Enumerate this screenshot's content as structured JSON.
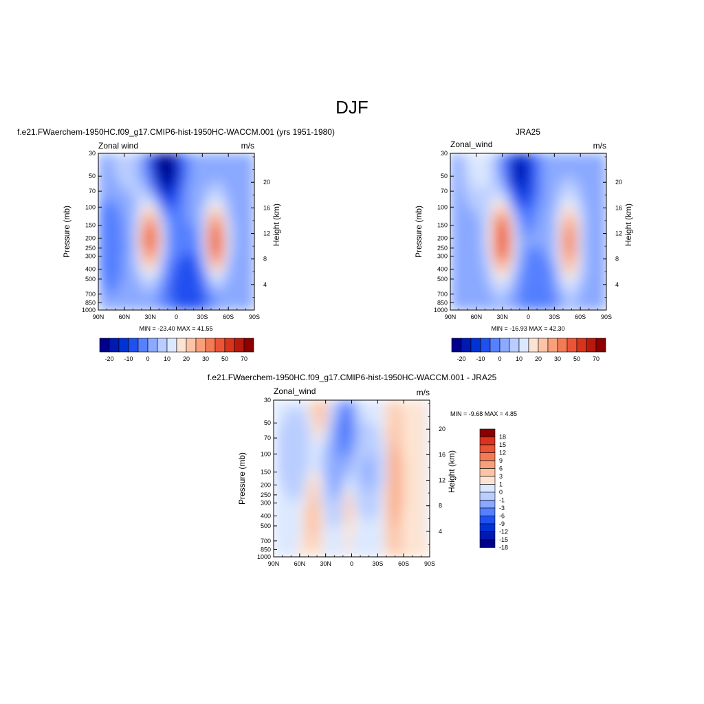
{
  "title": "DJF",
  "palette_main": [
    "#00008b",
    "#0019b0",
    "#0033d6",
    "#2050f0",
    "#5580ff",
    "#8aa9ff",
    "#b9cdff",
    "#dce8ff",
    "#fde4d2",
    "#fcc4a7",
    "#f8a07c",
    "#f47a55",
    "#eb5434",
    "#d8341d",
    "#b8190f",
    "#8b0000"
  ],
  "palette_diff": [
    "#00008b",
    "#0019b0",
    "#0033d6",
    "#2050f0",
    "#5580ff",
    "#8aa9ff",
    "#b9cdff",
    "#dce8ff",
    "#fde4d2",
    "#fcc4a7",
    "#f8a07c",
    "#f47a55",
    "#eb5434",
    "#d8341d",
    "#8b0000"
  ],
  "panels": [
    {
      "title": "f.e21.FWaerchem-1950HC.f09_g17.CMIP6-hist-1950HC-WACCM.001 (yrs 1951-1980)",
      "left_string": "Zonal wind",
      "right_string": "m/s",
      "stats": "MIN = -23.40  MAX =  41.55"
    },
    {
      "title": "JRA25",
      "left_string": "Zonal_wind",
      "right_string": "m/s",
      "stats": "MIN = -16.93  MAX =  42.30"
    },
    {
      "title": "f.e21.FWaerchem-1950HC.f09_g17.CMIP6-hist-1950HC-WACCM.001 - JRA25",
      "left_string": "Zonal_wind",
      "right_string": "m/s",
      "stats": "MIN =  -9.68  MAX =   4.85"
    }
  ],
  "axes": {
    "ylabel": "Pressure (mb)",
    "ylabel_right": "Height (km)",
    "x_ticks": [
      "90N",
      "60N",
      "30N",
      "0",
      "30S",
      "60S",
      "90S"
    ],
    "p_ticks": [
      "30",
      "50",
      "70",
      "100",
      "150",
      "200",
      "250",
      "300",
      "400",
      "500",
      "700",
      "850",
      "1000"
    ],
    "h_ticks": [
      "4",
      "8",
      "12",
      "16",
      "20"
    ]
  },
  "chart_data": [
    {
      "type": "heatmap",
      "title": "f.e21.FWaerchem-1950HC.f09_g17.CMIP6-hist-1950HC-WACCM.001 (yrs 1951-1980)",
      "variable": "Zonal wind",
      "units": "m/s",
      "xlabel": "",
      "ylabel": "Pressure (mb)",
      "ylabel_right": "Height (km)",
      "x_ticks": [
        "90N",
        "60N",
        "30N",
        "0",
        "30S",
        "60S",
        "90S"
      ],
      "x_range": [
        90,
        -90
      ],
      "pressure_range_mb": [
        1000,
        30
      ],
      "y_scale": "log",
      "min": -23.4,
      "max": 41.55,
      "colorbar_labels": [
        "-20",
        "-10",
        "0",
        "10",
        "20",
        "30",
        "50",
        "70"
      ],
      "features": [
        {
          "lat": 30,
          "p": 200,
          "u": 30
        },
        {
          "lat": -45,
          "p": 200,
          "u": 40
        },
        {
          "lat": 10,
          "p": 30,
          "u": -23
        }
      ]
    },
    {
      "type": "heatmap",
      "title": "JRA25",
      "variable": "Zonal_wind",
      "units": "m/s",
      "xlabel": "",
      "ylabel": "Pressure (mb)",
      "ylabel_right": "Height (km)",
      "x_ticks": [
        "90N",
        "60N",
        "30N",
        "0",
        "30S",
        "60S",
        "90S"
      ],
      "x_range": [
        90,
        -90
      ],
      "pressure_range_mb": [
        1000,
        30
      ],
      "y_scale": "log",
      "min": -16.93,
      "max": 42.3,
      "colorbar_labels": [
        "-20",
        "-10",
        "0",
        "10",
        "20",
        "30",
        "50",
        "70"
      ],
      "features": [
        {
          "lat": 30,
          "p": 200,
          "u": 42
        },
        {
          "lat": -47,
          "p": 220,
          "u": 30
        },
        {
          "lat": 10,
          "p": 40,
          "u": -17
        }
      ]
    },
    {
      "type": "heatmap",
      "title": "f.e21.FWaerchem-1950HC.f09_g17.CMIP6-hist-1950HC-WACCM.001 - JRA25",
      "variable": "Zonal_wind",
      "units": "m/s",
      "xlabel": "",
      "ylabel": "Pressure (mb)",
      "ylabel_right": "Height (km)",
      "x_ticks": [
        "90N",
        "60N",
        "30N",
        "0",
        "30S",
        "60S",
        "90S"
      ],
      "x_range": [
        90,
        -90
      ],
      "pressure_range_mb": [
        1000,
        30
      ],
      "y_scale": "log",
      "min": -9.68,
      "max": 4.85,
      "colorbar_labels": [
        "18",
        "15",
        "12",
        "9",
        "6",
        "3",
        "1",
        "0",
        "-1",
        "-3",
        "-6",
        "-9",
        "-12",
        "-15",
        "-18"
      ],
      "features": [
        {
          "lat": 5,
          "p": 50,
          "u": -9
        },
        {
          "lat": -50,
          "p": 200,
          "u": 4
        },
        {
          "lat": 35,
          "p": 40,
          "u": 2
        }
      ]
    }
  ]
}
